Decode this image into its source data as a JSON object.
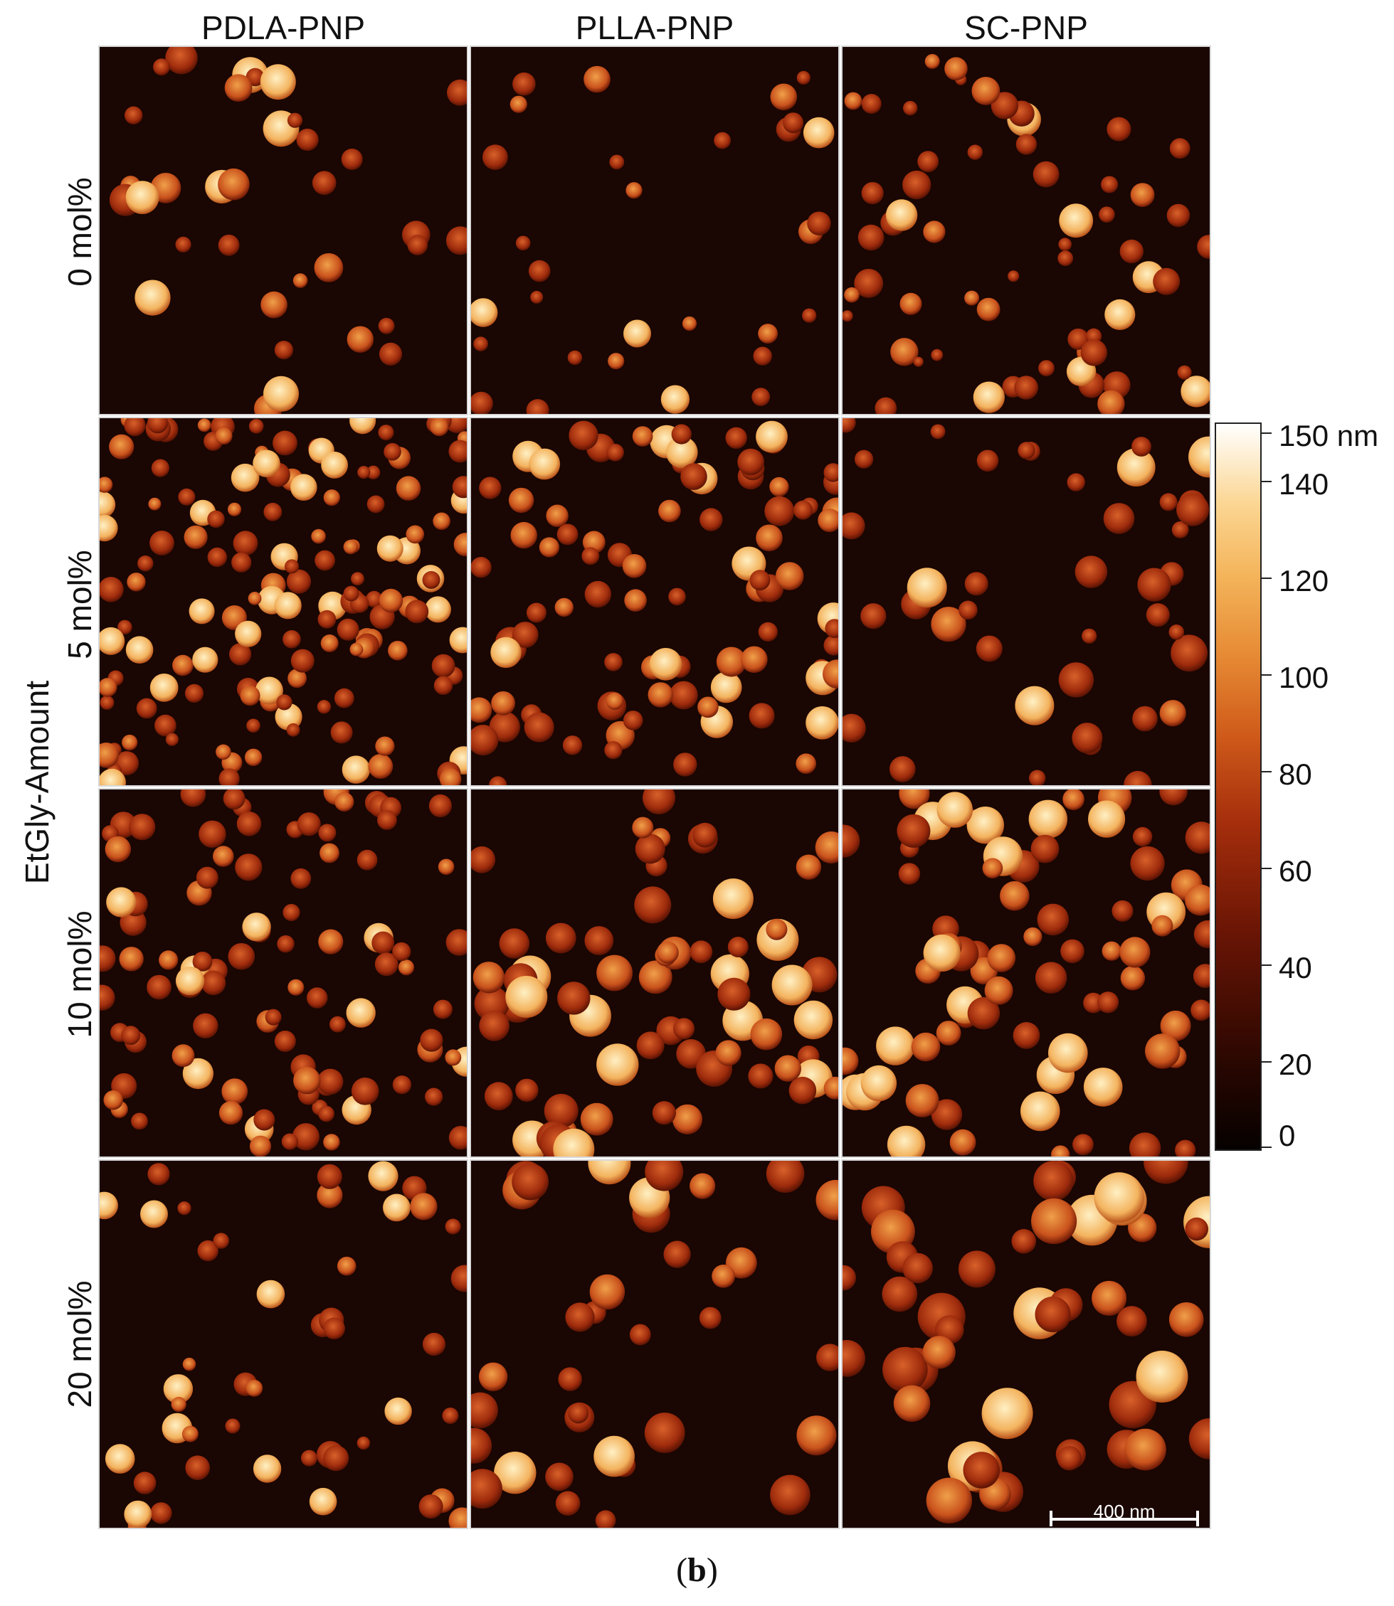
{
  "columns": [
    "PDLA-PNP",
    "PLLA-PNP",
    "SC-PNP"
  ],
  "rows": [
    "0 mol%",
    "5 mol%",
    "10 mol%",
    "20 mol%"
  ],
  "y_axis_title": "EtGly-Amount",
  "colorbar": {
    "unit_label": "150 nm",
    "ticks": [
      "140",
      "120",
      "100",
      "80",
      "60",
      "40",
      "20",
      "0"
    ]
  },
  "scale_bar_label": "400 nm",
  "caption": "(b)",
  "colors": {
    "background_particle_min": "#1a0602",
    "particle_mid": "#c8501c",
    "particle_max": "#fff1c8"
  }
}
